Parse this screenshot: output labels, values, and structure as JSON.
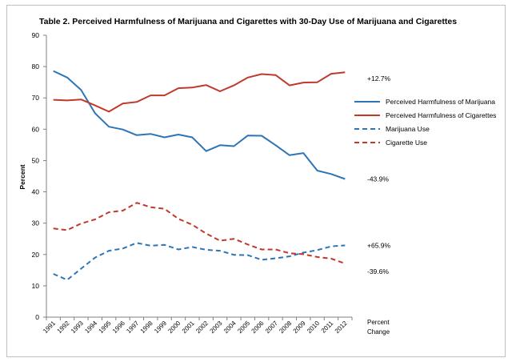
{
  "chart_data": {
    "type": "line",
    "title": "Table 2. Perceived Harmfulness of Marijuana and Cigarettes with 30-Day Use of Marijuana and Cigarettes",
    "xlabel": "",
    "ylabel": "Percent",
    "ylim": [
      0,
      90
    ],
    "yticks": [
      0,
      10,
      20,
      30,
      40,
      50,
      60,
      70,
      80,
      90
    ],
    "grid": false,
    "legend_position": "right",
    "x": [
      "1991",
      "1992",
      "1993",
      "1994",
      "1995",
      "1996",
      "1997",
      "1998",
      "1999",
      "2000",
      "2001",
      "2002",
      "2003",
      "2004",
      "2005",
      "2006",
      "2007",
      "2008",
      "2009",
      "2010",
      "2011",
      "2012"
    ],
    "series": [
      {
        "name": "Perceived Harmfulness of Marijuana",
        "color": "#2e75b6",
        "dash": "solid",
        "values": [
          78.6,
          76.5,
          72.5,
          65.1,
          60.8,
          59.9,
          58.1,
          58.5,
          57.4,
          58.3,
          57.4,
          53.0,
          54.9,
          54.6,
          58.0,
          57.9,
          54.9,
          51.7,
          52.4,
          46.8,
          45.7,
          44.1
        ],
        "change_label": "-43.9%"
      },
      {
        "name": "Perceived Harmfulness of Cigarettes",
        "color": "#c0392b",
        "dash": "solid",
        "values": [
          69.4,
          69.2,
          69.5,
          67.6,
          65.6,
          68.2,
          68.7,
          70.8,
          70.8,
          73.1,
          73.3,
          74.1,
          72.1,
          74.0,
          76.5,
          77.6,
          77.3,
          74.0,
          74.9,
          75.0,
          77.7,
          78.2
        ],
        "change_label": "+12.7%"
      },
      {
        "name": "Marijuana Use",
        "color": "#2e75b6",
        "dash": "dashed",
        "values": [
          13.8,
          11.9,
          15.5,
          19.0,
          21.2,
          21.9,
          23.7,
          22.8,
          23.1,
          21.6,
          22.4,
          21.5,
          21.2,
          19.9,
          19.8,
          18.3,
          18.8,
          19.4,
          20.6,
          21.4,
          22.6,
          22.9
        ],
        "change_label": "+65.9%"
      },
      {
        "name": "Cigarette Use",
        "color": "#c0392b",
        "dash": "dashed",
        "values": [
          28.3,
          27.8,
          29.9,
          31.2,
          33.5,
          34.0,
          36.5,
          35.1,
          34.6,
          31.4,
          29.5,
          26.7,
          24.4,
          25.0,
          23.2,
          21.6,
          21.6,
          20.4,
          20.1,
          19.2,
          18.7,
          17.1
        ],
        "change_label": "-39.6%"
      }
    ],
    "change_header": [
      "Percent",
      "Change"
    ]
  }
}
